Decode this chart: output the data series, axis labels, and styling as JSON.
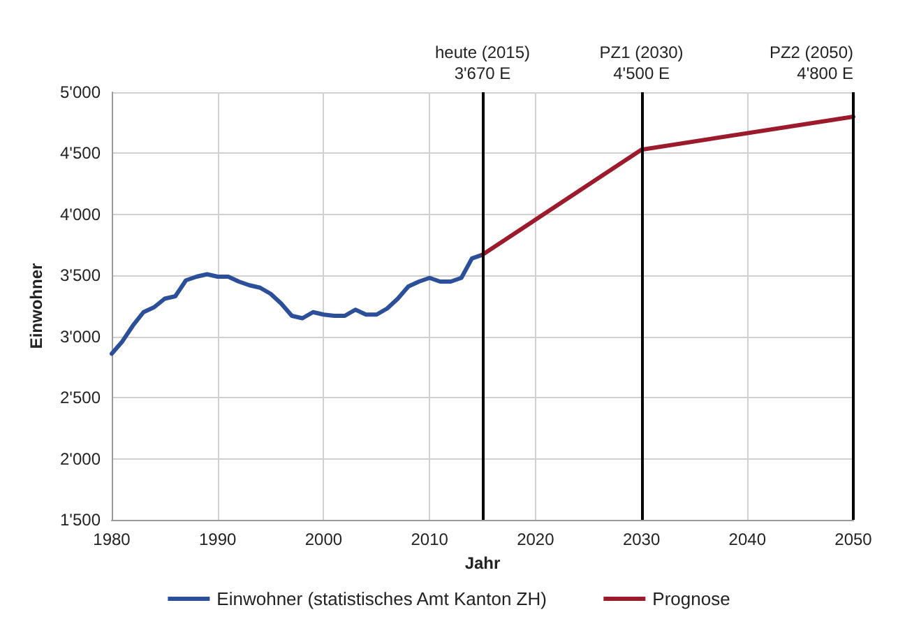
{
  "chart_data": {
    "type": "line",
    "xlabel": "Jahr",
    "ylabel": "Einwohner",
    "xlim": [
      1980,
      2050
    ],
    "xticks": [
      1980,
      1990,
      2000,
      2010,
      2020,
      2030,
      2040,
      2050
    ],
    "ylim": [
      1500,
      5000
    ],
    "yticks": [
      {
        "value": 1500,
        "label": "1'500"
      },
      {
        "value": 2000,
        "label": "2'000"
      },
      {
        "value": 2500,
        "label": "2'500"
      },
      {
        "value": 3000,
        "label": "3'000"
      },
      {
        "value": 3500,
        "label": "3'500"
      },
      {
        "value": 4000,
        "label": "4'000"
      },
      {
        "value": 4500,
        "label": "4'500"
      },
      {
        "value": 5000,
        "label": "5'000"
      }
    ],
    "series": [
      {
        "name": "Einwohner (statistisches Amt Kanton ZH)",
        "color": "#2b4f98",
        "x": [
          1980,
          1981,
          1982,
          1983,
          1984,
          1985,
          1986,
          1987,
          1988,
          1989,
          1990,
          1991,
          1992,
          1993,
          1994,
          1995,
          1996,
          1997,
          1998,
          1999,
          2000,
          2001,
          2002,
          2003,
          2004,
          2005,
          2006,
          2007,
          2008,
          2009,
          2010,
          2011,
          2012,
          2013,
          2014,
          2015
        ],
        "values": [
          2860,
          2960,
          3090,
          3200,
          3240,
          3310,
          3330,
          3460,
          3490,
          3510,
          3490,
          3490,
          3450,
          3420,
          3400,
          3350,
          3270,
          3170,
          3150,
          3200,
          3180,
          3170,
          3170,
          3220,
          3180,
          3180,
          3230,
          3310,
          3410,
          3450,
          3480,
          3450,
          3450,
          3480,
          3640,
          3670
        ]
      },
      {
        "name": "Prognose",
        "color": "#9b1b2c",
        "x": [
          2015,
          2030,
          2050
        ],
        "values": [
          3670,
          4530,
          4800
        ]
      }
    ],
    "ref_lines": [
      {
        "axis": "x",
        "value": 2015,
        "label": "heute (2015)\n3'670 E",
        "color": "#000000"
      },
      {
        "axis": "x",
        "value": 2030,
        "label": "PZ1 (2030)\n4'500 E",
        "color": "#000000"
      },
      {
        "axis": "x",
        "value": 2050,
        "label": "PZ2 (2050)\n4'800 E",
        "color": "#000000"
      }
    ],
    "grid": true,
    "legend": "bottom",
    "marker": "none",
    "line_style": "solid"
  }
}
